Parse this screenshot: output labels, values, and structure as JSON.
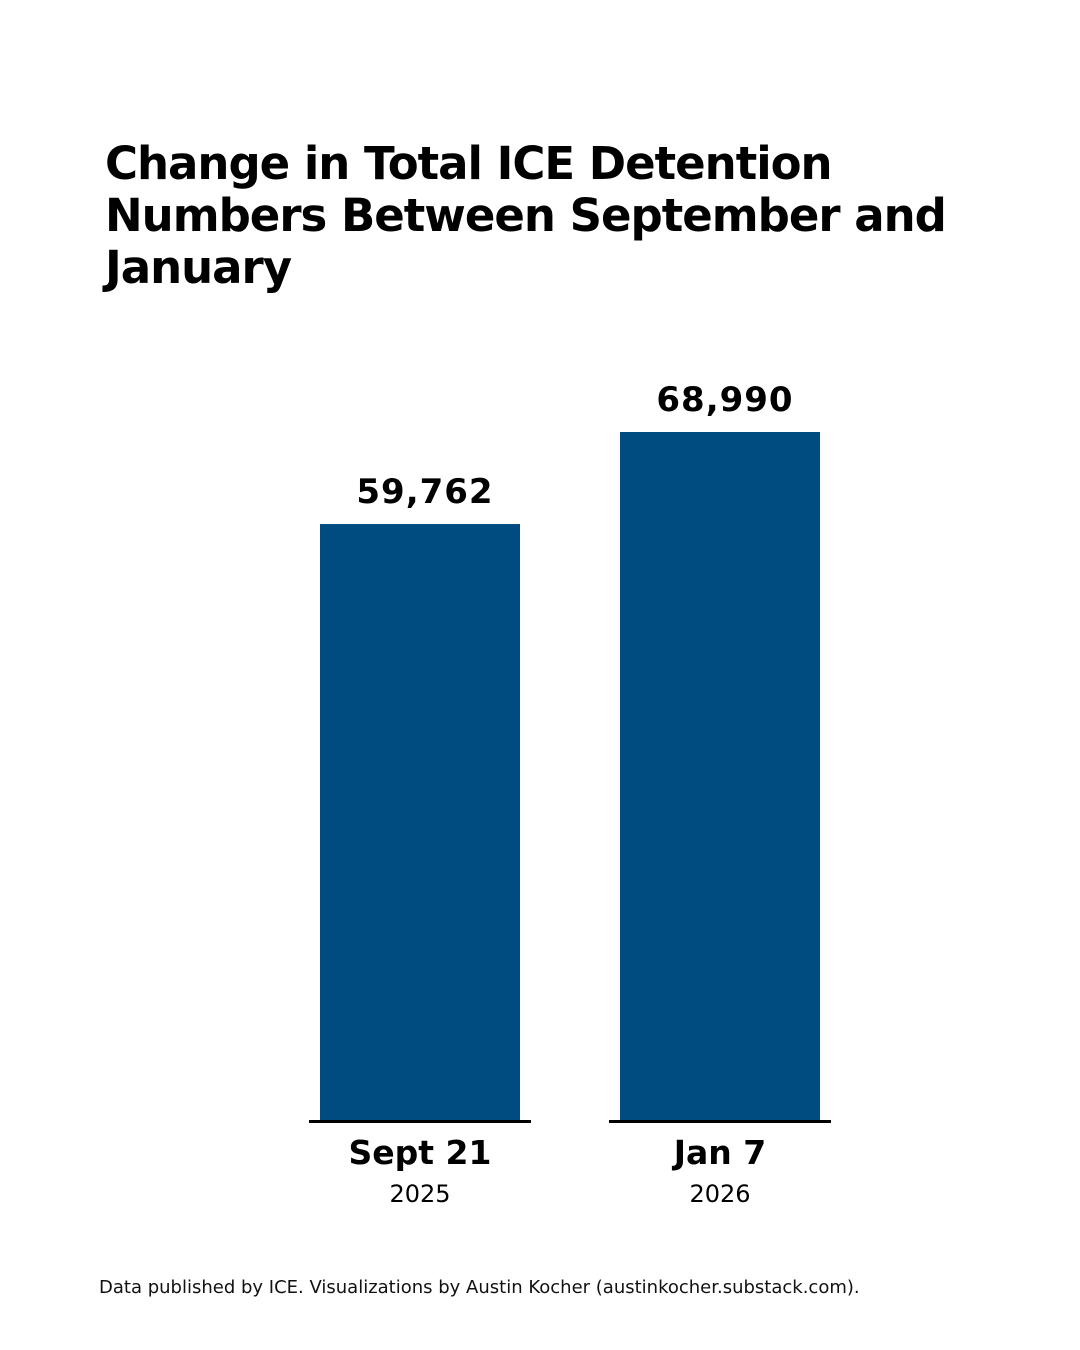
{
  "chart_data": {
    "type": "bar",
    "title": "Change in Total ICE Detention Numbers Between September and January",
    "categories": [
      "Sept 21",
      "Jan 7"
    ],
    "category_sublabels": [
      "2025",
      "2026"
    ],
    "values": [
      59762,
      68990
    ],
    "value_labels": [
      "59,762",
      "68,990"
    ],
    "ylim": [
      0,
      68990
    ],
    "grid": false,
    "bar_color": "#004c80",
    "xlabel": "",
    "ylabel": ""
  },
  "footer": {
    "source": "Data published by ICE. Visualizations by Austin Kocher (austinkocher.substack.com)."
  }
}
